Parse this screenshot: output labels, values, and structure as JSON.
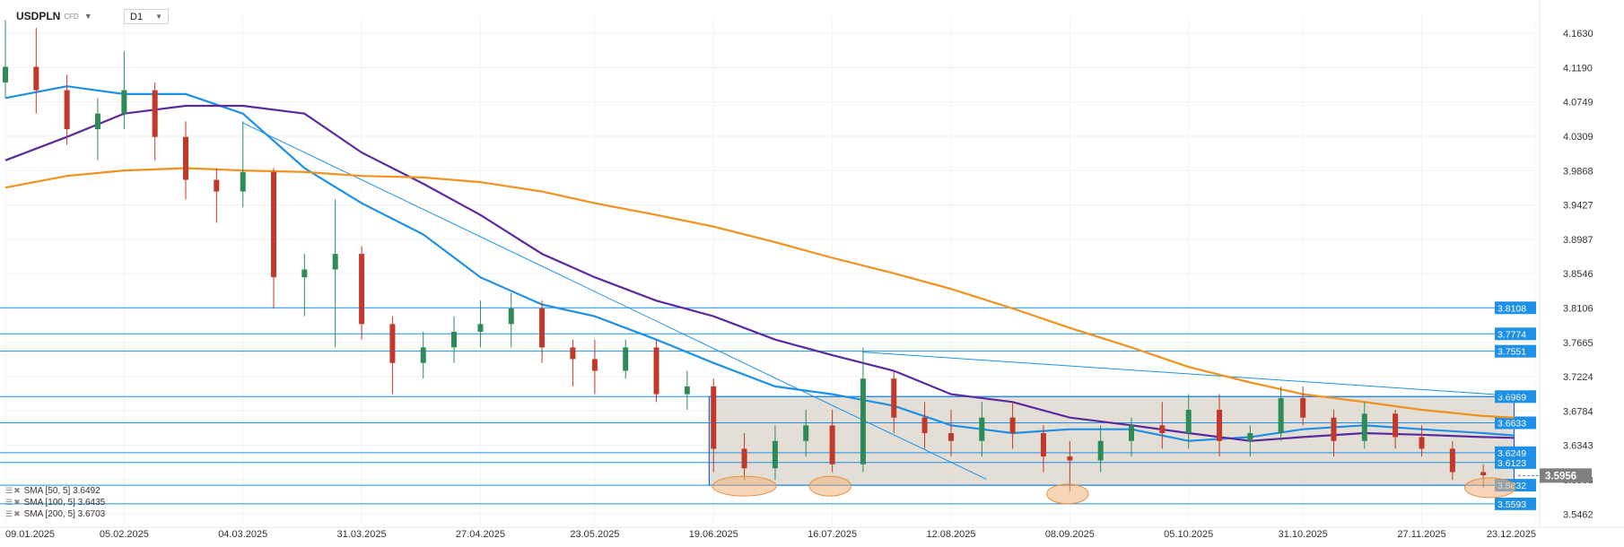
{
  "header": {
    "symbol": "USDPLN",
    "instrument_type": "CFD",
    "timeframe": "D1"
  },
  "legend": [
    {
      "label": "SMA [50, 5] 3.6492"
    },
    {
      "label": "SMA [100, 5] 3.6435"
    },
    {
      "label": "SMA [200, 5] 3.6703"
    }
  ],
  "colors": {
    "up_candle": "#2e8b57",
    "down_candle": "#c0392b",
    "sma50": "#1e90e8",
    "sma100": "#5b2a9e",
    "sma200": "#f2911b",
    "level_line": "#1e90e8",
    "trendline": "#1e90e8",
    "range_box": "#d9d4c8",
    "highlight": "#f4b37e",
    "price_tag": "#7f7f7f"
  },
  "chart_data": {
    "type": "candlestick",
    "ylim": [
      3.535,
      4.185
    ],
    "y_ticks": [
      "4.1630",
      "4.1190",
      "4.0749",
      "4.0309",
      "3.9868",
      "3.9427",
      "3.8987",
      "3.8546",
      "3.8106",
      "3.7665",
      "3.7224",
      "3.6784",
      "3.6343",
      "3.5903",
      "3.5462"
    ],
    "x_ticks": [
      "09.01.2025",
      "05.02.2025",
      "04.03.2025",
      "31.03.2025",
      "27.04.2025",
      "23.05.2025",
      "19.06.2025",
      "16.07.2025",
      "12.08.2025",
      "08.09.2025",
      "05.10.2025",
      "31.10.2025",
      "27.11.2025",
      "23.12.2025"
    ],
    "x_range": [
      "2025-01-09",
      "2025-12-23"
    ],
    "candles_approx": [
      [
        "2025-01-09",
        4.1,
        4.18,
        4.08,
        4.12
      ],
      [
        "2025-01-16",
        4.12,
        4.17,
        4.06,
        4.09
      ],
      [
        "2025-01-23",
        4.09,
        4.11,
        4.02,
        4.04
      ],
      [
        "2025-01-30",
        4.04,
        4.08,
        4.0,
        4.06
      ],
      [
        "2025-02-05",
        4.06,
        4.14,
        4.04,
        4.09
      ],
      [
        "2025-02-12",
        4.09,
        4.1,
        4.0,
        4.03
      ],
      [
        "2025-02-19",
        4.03,
        4.05,
        3.95,
        3.975
      ],
      [
        "2025-02-26",
        3.975,
        3.99,
        3.92,
        3.96
      ],
      [
        "2025-03-04",
        3.96,
        4.05,
        3.94,
        3.985
      ],
      [
        "2025-03-11",
        3.985,
        3.99,
        3.81,
        3.85
      ],
      [
        "2025-03-18",
        3.85,
        3.88,
        3.8,
        3.86
      ],
      [
        "2025-03-25",
        3.86,
        3.95,
        3.76,
        3.88
      ],
      [
        "2025-03-31",
        3.88,
        3.89,
        3.77,
        3.79
      ],
      [
        "2025-04-07",
        3.79,
        3.8,
        3.7,
        3.74
      ],
      [
        "2025-04-14",
        3.74,
        3.78,
        3.72,
        3.76
      ],
      [
        "2025-04-21",
        3.76,
        3.8,
        3.74,
        3.78
      ],
      [
        "2025-04-27",
        3.78,
        3.82,
        3.76,
        3.79
      ],
      [
        "2025-05-04",
        3.79,
        3.83,
        3.76,
        3.81
      ],
      [
        "2025-05-11",
        3.81,
        3.82,
        3.74,
        3.76
      ],
      [
        "2025-05-18",
        3.76,
        3.77,
        3.71,
        3.745
      ],
      [
        "2025-05-23",
        3.745,
        3.77,
        3.7,
        3.73
      ],
      [
        "2025-05-30",
        3.73,
        3.77,
        3.72,
        3.76
      ],
      [
        "2025-06-06",
        3.76,
        3.77,
        3.69,
        3.7
      ],
      [
        "2025-06-13",
        3.7,
        3.73,
        3.68,
        3.71
      ],
      [
        "2025-06-19",
        3.71,
        3.72,
        3.6,
        3.63
      ],
      [
        "2025-06-26",
        3.63,
        3.65,
        3.59,
        3.605
      ],
      [
        "2025-07-03",
        3.605,
        3.66,
        3.59,
        3.64
      ],
      [
        "2025-07-10",
        3.64,
        3.68,
        3.62,
        3.66
      ],
      [
        "2025-07-16",
        3.66,
        3.68,
        3.6,
        3.61
      ],
      [
        "2025-07-23",
        3.61,
        3.76,
        3.6,
        3.72
      ],
      [
        "2025-07-30",
        3.72,
        3.73,
        3.65,
        3.67
      ],
      [
        "2025-08-06",
        3.67,
        3.69,
        3.63,
        3.65
      ],
      [
        "2025-08-12",
        3.65,
        3.68,
        3.62,
        3.64
      ],
      [
        "2025-08-19",
        3.64,
        3.69,
        3.62,
        3.67
      ],
      [
        "2025-08-26",
        3.67,
        3.69,
        3.63,
        3.65
      ],
      [
        "2025-09-02",
        3.65,
        3.66,
        3.6,
        3.62
      ],
      [
        "2025-09-08",
        3.62,
        3.64,
        3.575,
        3.615
      ],
      [
        "2025-09-15",
        3.615,
        3.66,
        3.6,
        3.64
      ],
      [
        "2025-09-22",
        3.64,
        3.67,
        3.62,
        3.66
      ],
      [
        "2025-09-29",
        3.66,
        3.69,
        3.63,
        3.65
      ],
      [
        "2025-10-05",
        3.65,
        3.7,
        3.63,
        3.68
      ],
      [
        "2025-10-12",
        3.68,
        3.7,
        3.62,
        3.64
      ],
      [
        "2025-10-19",
        3.64,
        3.66,
        3.62,
        3.65
      ],
      [
        "2025-10-26",
        3.65,
        3.71,
        3.64,
        3.695
      ],
      [
        "2025-10-31",
        3.695,
        3.71,
        3.66,
        3.67
      ],
      [
        "2025-11-07",
        3.67,
        3.68,
        3.62,
        3.64
      ],
      [
        "2025-11-14",
        3.64,
        3.69,
        3.63,
        3.675
      ],
      [
        "2025-11-21",
        3.675,
        3.68,
        3.63,
        3.645
      ],
      [
        "2025-11-27",
        3.645,
        3.66,
        3.62,
        3.63
      ],
      [
        "2025-12-04",
        3.63,
        3.64,
        3.59,
        3.6
      ],
      [
        "2025-12-11",
        3.6,
        3.61,
        3.58,
        3.596
      ]
    ],
    "series": [
      {
        "name": "SMA [50, 5]",
        "color": "#1e90e8",
        "points": [
          [
            "2025-01-09",
            4.08
          ],
          [
            "2025-01-23",
            4.095
          ],
          [
            "2025-02-05",
            4.085
          ],
          [
            "2025-02-19",
            4.085
          ],
          [
            "2025-03-04",
            4.06
          ],
          [
            "2025-03-18",
            3.99
          ],
          [
            "2025-03-31",
            3.945
          ],
          [
            "2025-04-14",
            3.905
          ],
          [
            "2025-04-27",
            3.85
          ],
          [
            "2025-05-11",
            3.815
          ],
          [
            "2025-05-23",
            3.8
          ],
          [
            "2025-06-06",
            3.77
          ],
          [
            "2025-06-19",
            3.74
          ],
          [
            "2025-07-03",
            3.71
          ],
          [
            "2025-07-16",
            3.7
          ],
          [
            "2025-07-30",
            3.685
          ],
          [
            "2025-08-12",
            3.66
          ],
          [
            "2025-08-26",
            3.65
          ],
          [
            "2025-09-08",
            3.655
          ],
          [
            "2025-09-22",
            3.655
          ],
          [
            "2025-10-05",
            3.64
          ],
          [
            "2025-10-19",
            3.645
          ],
          [
            "2025-10-31",
            3.655
          ],
          [
            "2025-11-14",
            3.66
          ],
          [
            "2025-11-27",
            3.655
          ],
          [
            "2025-12-11",
            3.65
          ],
          [
            "2025-12-18",
            3.647
          ]
        ]
      },
      {
        "name": "SMA [100, 5]",
        "color": "#5b2a9e",
        "points": [
          [
            "2025-01-09",
            4.0
          ],
          [
            "2025-01-23",
            4.03
          ],
          [
            "2025-02-05",
            4.06
          ],
          [
            "2025-02-19",
            4.07
          ],
          [
            "2025-03-04",
            4.07
          ],
          [
            "2025-03-18",
            4.06
          ],
          [
            "2025-03-31",
            4.01
          ],
          [
            "2025-04-14",
            3.97
          ],
          [
            "2025-04-27",
            3.93
          ],
          [
            "2025-05-11",
            3.88
          ],
          [
            "2025-05-23",
            3.85
          ],
          [
            "2025-06-06",
            3.82
          ],
          [
            "2025-06-19",
            3.8
          ],
          [
            "2025-07-03",
            3.77
          ],
          [
            "2025-07-16",
            3.75
          ],
          [
            "2025-07-30",
            3.73
          ],
          [
            "2025-08-12",
            3.7
          ],
          [
            "2025-08-26",
            3.69
          ],
          [
            "2025-09-08",
            3.67
          ],
          [
            "2025-09-22",
            3.66
          ],
          [
            "2025-10-05",
            3.65
          ],
          [
            "2025-10-19",
            3.64
          ],
          [
            "2025-10-31",
            3.645
          ],
          [
            "2025-11-14",
            3.65
          ],
          [
            "2025-11-27",
            3.648
          ],
          [
            "2025-12-11",
            3.645
          ],
          [
            "2025-12-18",
            3.644
          ]
        ]
      },
      {
        "name": "SMA [200, 5]",
        "color": "#f2911b",
        "points": [
          [
            "2025-01-09",
            3.965
          ],
          [
            "2025-01-23",
            3.98
          ],
          [
            "2025-02-05",
            3.987
          ],
          [
            "2025-02-19",
            3.99
          ],
          [
            "2025-03-04",
            3.987
          ],
          [
            "2025-03-18",
            3.985
          ],
          [
            "2025-03-31",
            3.98
          ],
          [
            "2025-04-14",
            3.978
          ],
          [
            "2025-04-27",
            3.972
          ],
          [
            "2025-05-11",
            3.96
          ],
          [
            "2025-05-23",
            3.945
          ],
          [
            "2025-06-06",
            3.93
          ],
          [
            "2025-06-19",
            3.915
          ],
          [
            "2025-07-03",
            3.895
          ],
          [
            "2025-07-16",
            3.875
          ],
          [
            "2025-07-30",
            3.855
          ],
          [
            "2025-08-12",
            3.835
          ],
          [
            "2025-08-26",
            3.81
          ],
          [
            "2025-09-08",
            3.785
          ],
          [
            "2025-09-22",
            3.76
          ],
          [
            "2025-10-05",
            3.735
          ],
          [
            "2025-10-19",
            3.715
          ],
          [
            "2025-10-31",
            3.7
          ],
          [
            "2025-11-14",
            3.69
          ],
          [
            "2025-11-27",
            3.68
          ],
          [
            "2025-12-11",
            3.672
          ],
          [
            "2025-12-18",
            3.67
          ]
        ]
      }
    ],
    "horizontal_levels": [
      "3.8108",
      "3.7774",
      "3.7551",
      "3.6969",
      "3.6633",
      "3.6249",
      "3.6123",
      "3.5832",
      "3.5593"
    ],
    "trendlines": [
      {
        "from": [
          "2025-03-04",
          4.048
        ],
        "to": [
          "2025-08-20",
          3.591
        ]
      },
      {
        "from": [
          "2025-07-23",
          3.754
        ],
        "to": [
          "2025-12-18",
          3.698
        ]
      }
    ],
    "range_box": {
      "x_from": "2025-06-18",
      "x_to": "2025-12-18",
      "y_top": 3.6969,
      "y_bottom": 3.5832
    },
    "highlights": [
      {
        "x_from": "2025-06-20",
        "x_to": "2025-07-02",
        "y_center": 3.582
      },
      {
        "x_from": "2025-07-12",
        "x_to": "2025-07-19",
        "y_center": 3.582
      },
      {
        "x_from": "2025-09-04",
        "x_to": "2025-09-11",
        "y_center": 3.572
      },
      {
        "x_from": "2025-12-08",
        "x_to": "2025-12-17",
        "y_center": 3.58
      }
    ],
    "current_price": "3.5956"
  }
}
